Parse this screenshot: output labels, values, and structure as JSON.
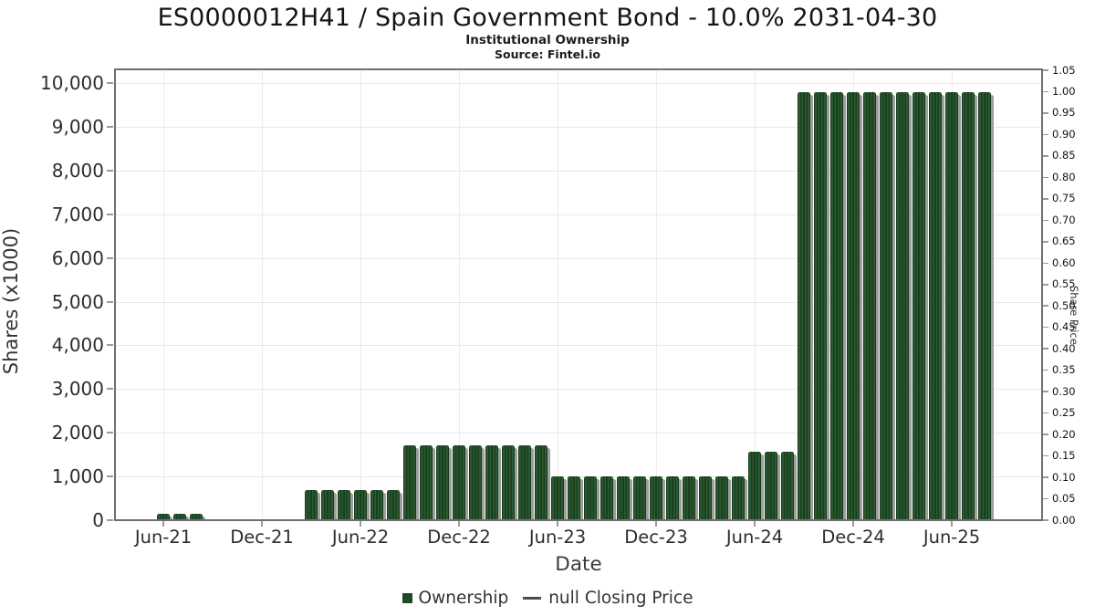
{
  "chart_data": {
    "type": "bar",
    "title": "ES0000012H41 / Spain Government Bond - 10.0% 2031-04-30",
    "subtitle": "Institutional Ownership",
    "source_line": "Source: Fintel.io",
    "xlabel": "Date",
    "categories": [
      "Jun-21",
      "Jul-21",
      "Aug-21",
      "Sep-21",
      "Oct-21",
      "Nov-21",
      "Dec-21",
      "Jan-22",
      "Feb-22",
      "Mar-22",
      "Apr-22",
      "May-22",
      "Jun-22",
      "Jul-22",
      "Aug-22",
      "Sep-22",
      "Oct-22",
      "Nov-22",
      "Dec-22",
      "Jan-23",
      "Feb-23",
      "Mar-23",
      "Apr-23",
      "May-23",
      "Jun-23",
      "Jul-23",
      "Aug-23",
      "Sep-23",
      "Oct-23",
      "Nov-23",
      "Dec-23",
      "Jan-24",
      "Feb-24",
      "Mar-24",
      "Apr-24",
      "May-24",
      "Jun-24",
      "Jul-24",
      "Aug-24",
      "Sep-24",
      "Oct-24",
      "Nov-24",
      "Dec-24",
      "Jan-25",
      "Feb-25",
      "Mar-25",
      "Apr-25",
      "May-25",
      "Jun-25",
      "Jul-25",
      "Aug-25"
    ],
    "series": [
      {
        "name": "Ownership",
        "units": "Shares (x1000)",
        "values": [
          150,
          150,
          150,
          0,
          0,
          0,
          0,
          0,
          0,
          690,
          690,
          690,
          690,
          690,
          690,
          1710,
          1710,
          1710,
          1710,
          1710,
          1710,
          1710,
          1710,
          1710,
          1000,
          1000,
          1000,
          1000,
          1000,
          1000,
          1000,
          1000,
          1000,
          1000,
          1000,
          1000,
          1560,
          1560,
          1560,
          9790,
          9790,
          9790,
          9790,
          9790,
          9790,
          9790,
          9790,
          9790,
          9790,
          9790,
          9790
        ]
      }
    ],
    "x_ticks": [
      "Jun-21",
      "Dec-21",
      "Jun-22",
      "Dec-22",
      "Jun-23",
      "Dec-23",
      "Jun-24",
      "Dec-24",
      "Jun-25"
    ],
    "y_left": {
      "label": "Shares (x1000)",
      "min": 0,
      "max": 10000,
      "step": 1000
    },
    "y_right": {
      "label": "Share Price",
      "min": 0.0,
      "max": 1.05,
      "step": 0.05
    },
    "grid": true,
    "legend_position": "bottom",
    "legend": [
      {
        "label": "Ownership",
        "marker": "square",
        "color": "#1e4a23"
      },
      {
        "label": "null Closing Price",
        "marker": "line",
        "color": "#4d4d4d"
      }
    ],
    "colors": {
      "bar": "#1e4a23",
      "bar_stripe_light": "#2a5a30",
      "bar_stripe_dark": "#1a3e20",
      "bar_shadow": "#9e9e9e",
      "grid": "#e8e8e8",
      "plot_border": "#6f6f6f",
      "tick": "#9a9a9a",
      "text": "#2e2e2e"
    }
  }
}
